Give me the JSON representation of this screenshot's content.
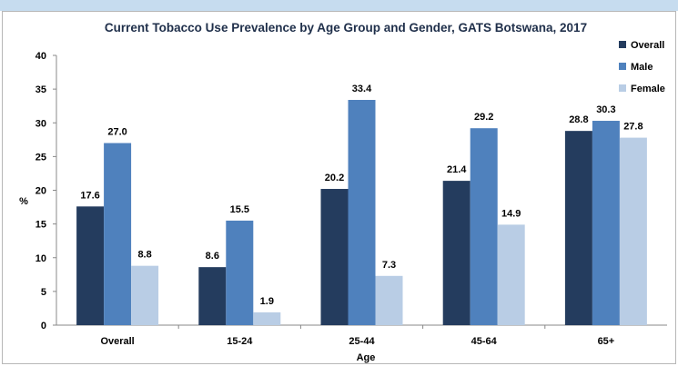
{
  "chart_data": {
    "type": "bar",
    "title": "Current Tobacco Use Prevalence by Age Group and Gender, GATS Botswana, 2017",
    "xlabel": "Age",
    "ylabel": "%",
    "ylim": [
      0,
      40
    ],
    "yticks": [
      "0",
      "5",
      "10",
      "15",
      "20",
      "25",
      "30",
      "35",
      "40"
    ],
    "categories": [
      "Overall",
      "15-24",
      "25-44",
      "45-64",
      "65+"
    ],
    "series": [
      {
        "name": "Overall",
        "color": "#243c5e",
        "values": [
          17.6,
          8.6,
          20.2,
          21.4,
          28.8
        ],
        "labels": [
          "17.6",
          "8.6",
          "20.2",
          "21.4",
          "28.8"
        ]
      },
      {
        "name": "Male",
        "color": "#4f81bd",
        "values": [
          27.0,
          15.5,
          33.4,
          29.2,
          30.3
        ],
        "labels": [
          "27.0",
          "15.5",
          "33.4",
          "29.2",
          "30.3"
        ]
      },
      {
        "name": "Female",
        "color": "#b9cde5",
        "values": [
          8.8,
          1.9,
          7.3,
          14.9,
          27.8
        ],
        "labels": [
          "8.8",
          "1.9",
          "7.3",
          "14.9",
          "27.8"
        ]
      }
    ],
    "grid": false,
    "legend_position": "top-right"
  }
}
